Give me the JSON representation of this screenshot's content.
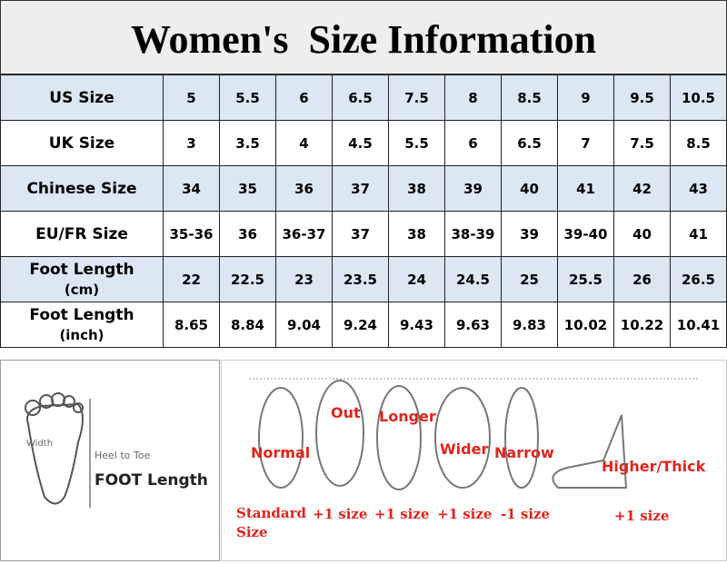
{
  "header": {
    "title": "Women's  Size Information"
  },
  "table": {
    "rows": [
      {
        "label": "US Size",
        "values": [
          "5",
          "5.5",
          "6",
          "6.5",
          "7.5",
          "8",
          "8.5",
          "9",
          "9.5",
          "10.5"
        ]
      },
      {
        "label": "UK Size",
        "values": [
          "3",
          "3.5",
          "4",
          "4.5",
          "5.5",
          "6",
          "6.5",
          "7",
          "7.5",
          "8.5"
        ]
      },
      {
        "label": "Chinese Size",
        "values": [
          "34",
          "35",
          "36",
          "37",
          "38",
          "39",
          "40",
          "41",
          "42",
          "43"
        ]
      },
      {
        "label": "EU/FR Size",
        "values": [
          "35-36",
          "36",
          "36-37",
          "37",
          "38",
          "38-39",
          "39",
          "39-40",
          "40",
          "41"
        ]
      },
      {
        "label": "Foot Length",
        "unit": "(cm)",
        "values": [
          "22",
          "22.5",
          "23",
          "23.5",
          "24",
          "24.5",
          "25",
          "25.5",
          "26",
          "26.5"
        ]
      },
      {
        "label": "Foot Length",
        "unit": "(inch)",
        "values": [
          "8.65",
          "8.84",
          "9.04",
          "9.24",
          "9.43",
          "9.63",
          "9.83",
          "10.02",
          "10.22",
          "10.41"
        ]
      }
    ]
  },
  "measure": {
    "width": "Width",
    "heel_to_toe": "Heel to Toe",
    "foot_length": "FOOT Length"
  },
  "foot_types": [
    {
      "name": "Normal",
      "advice": "Standard Size"
    },
    {
      "name": "Out",
      "advice": "+1 size"
    },
    {
      "name": "Longer",
      "advice": "+1 size"
    },
    {
      "name": "Wider",
      "advice": "+1 size"
    },
    {
      "name": "Narrow",
      "advice": "-1 size"
    },
    {
      "name": "Higher/Thick",
      "advice": "+1 size"
    }
  ]
}
